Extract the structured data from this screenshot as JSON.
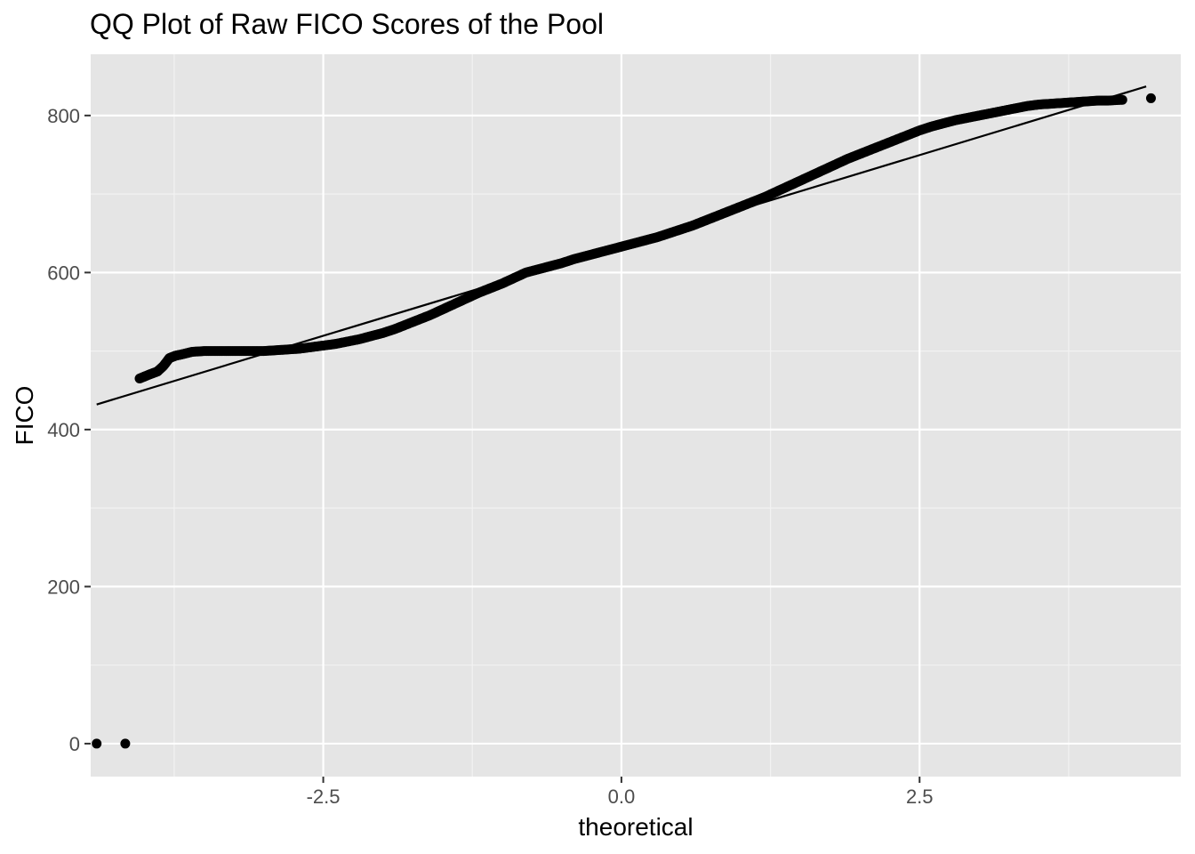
{
  "chart_data": {
    "type": "scatter",
    "title": "QQ Plot of Raw FICO Scores of the Pool",
    "xlabel": "theoretical",
    "ylabel": "FICO",
    "xlim": [
      -4.45,
      4.69
    ],
    "ylim": [
      -42,
      878
    ],
    "x_ticks": [
      {
        "value": -2.5,
        "label": "-2.5"
      },
      {
        "value": 0.0,
        "label": "0.0"
      },
      {
        "value": 2.5,
        "label": "2.5"
      }
    ],
    "y_ticks": [
      {
        "value": 0,
        "label": "0"
      },
      {
        "value": 200,
        "label": "200"
      },
      {
        "value": 400,
        "label": "400"
      },
      {
        "value": 600,
        "label": "600"
      },
      {
        "value": 800,
        "label": "800"
      }
    ],
    "grid": true,
    "reference_line": {
      "x": [
        -4.4,
        4.4
      ],
      "y": [
        432,
        837
      ]
    },
    "points": [
      {
        "x": -4.4,
        "y": 0
      },
      {
        "x": -4.16,
        "y": 0
      },
      {
        "x": -4.04,
        "y": 465
      },
      {
        "x": -3.96,
        "y": 470
      },
      {
        "x": -3.89,
        "y": 474
      },
      {
        "x": -3.84,
        "y": 481
      },
      {
        "x": -3.79,
        "y": 491
      },
      {
        "x": -3.74,
        "y": 494
      },
      {
        "x": -3.68,
        "y": 496
      },
      {
        "x": -3.6,
        "y": 499
      },
      {
        "x": -3.5,
        "y": 500
      },
      {
        "x": -3.4,
        "y": 500
      },
      {
        "x": -3.3,
        "y": 500
      },
      {
        "x": -3.2,
        "y": 500
      },
      {
        "x": -3.1,
        "y": 500
      },
      {
        "x": -3.0,
        "y": 500
      },
      {
        "x": -2.9,
        "y": 501
      },
      {
        "x": -2.8,
        "y": 502
      },
      {
        "x": -2.7,
        "y": 503
      },
      {
        "x": -2.6,
        "y": 505
      },
      {
        "x": -2.5,
        "y": 507
      },
      {
        "x": -2.4,
        "y": 509
      },
      {
        "x": -2.3,
        "y": 512
      },
      {
        "x": -2.2,
        "y": 515
      },
      {
        "x": -2.1,
        "y": 519
      },
      {
        "x": -2.0,
        "y": 523
      },
      {
        "x": -1.9,
        "y": 528
      },
      {
        "x": -1.8,
        "y": 534
      },
      {
        "x": -1.7,
        "y": 540
      },
      {
        "x": -1.6,
        "y": 546
      },
      {
        "x": -1.5,
        "y": 553
      },
      {
        "x": -1.4,
        "y": 560
      },
      {
        "x": -1.3,
        "y": 567
      },
      {
        "x": -1.2,
        "y": 574
      },
      {
        "x": -1.1,
        "y": 580
      },
      {
        "x": -1.0,
        "y": 586
      },
      {
        "x": -0.9,
        "y": 593
      },
      {
        "x": -0.8,
        "y": 600
      },
      {
        "x": -0.7,
        "y": 604
      },
      {
        "x": -0.6,
        "y": 608
      },
      {
        "x": -0.5,
        "y": 612
      },
      {
        "x": -0.4,
        "y": 617
      },
      {
        "x": -0.3,
        "y": 621
      },
      {
        "x": -0.2,
        "y": 625
      },
      {
        "x": -0.1,
        "y": 629
      },
      {
        "x": 0.0,
        "y": 633
      },
      {
        "x": 0.1,
        "y": 637
      },
      {
        "x": 0.2,
        "y": 641
      },
      {
        "x": 0.3,
        "y": 645
      },
      {
        "x": 0.4,
        "y": 650
      },
      {
        "x": 0.5,
        "y": 655
      },
      {
        "x": 0.6,
        "y": 660
      },
      {
        "x": 0.7,
        "y": 666
      },
      {
        "x": 0.8,
        "y": 672
      },
      {
        "x": 0.9,
        "y": 678
      },
      {
        "x": 1.0,
        "y": 684
      },
      {
        "x": 1.1,
        "y": 690
      },
      {
        "x": 1.2,
        "y": 696
      },
      {
        "x": 1.3,
        "y": 703
      },
      {
        "x": 1.4,
        "y": 710
      },
      {
        "x": 1.5,
        "y": 717
      },
      {
        "x": 1.6,
        "y": 724
      },
      {
        "x": 1.7,
        "y": 731
      },
      {
        "x": 1.8,
        "y": 738
      },
      {
        "x": 1.9,
        "y": 745
      },
      {
        "x": 2.0,
        "y": 751
      },
      {
        "x": 2.1,
        "y": 757
      },
      {
        "x": 2.2,
        "y": 763
      },
      {
        "x": 2.3,
        "y": 769
      },
      {
        "x": 2.4,
        "y": 775
      },
      {
        "x": 2.5,
        "y": 781
      },
      {
        "x": 2.6,
        "y": 786
      },
      {
        "x": 2.7,
        "y": 790
      },
      {
        "x": 2.8,
        "y": 794
      },
      {
        "x": 2.9,
        "y": 797
      },
      {
        "x": 3.0,
        "y": 800
      },
      {
        "x": 3.1,
        "y": 803
      },
      {
        "x": 3.2,
        "y": 806
      },
      {
        "x": 3.3,
        "y": 809
      },
      {
        "x": 3.4,
        "y": 812
      },
      {
        "x": 3.5,
        "y": 814
      },
      {
        "x": 3.6,
        "y": 815
      },
      {
        "x": 3.7,
        "y": 816
      },
      {
        "x": 3.8,
        "y": 817
      },
      {
        "x": 3.9,
        "y": 818
      },
      {
        "x": 4.0,
        "y": 819
      },
      {
        "x": 4.08,
        "y": 819
      },
      {
        "x": 4.2,
        "y": 820
      },
      {
        "x": 4.44,
        "y": 822
      }
    ]
  }
}
